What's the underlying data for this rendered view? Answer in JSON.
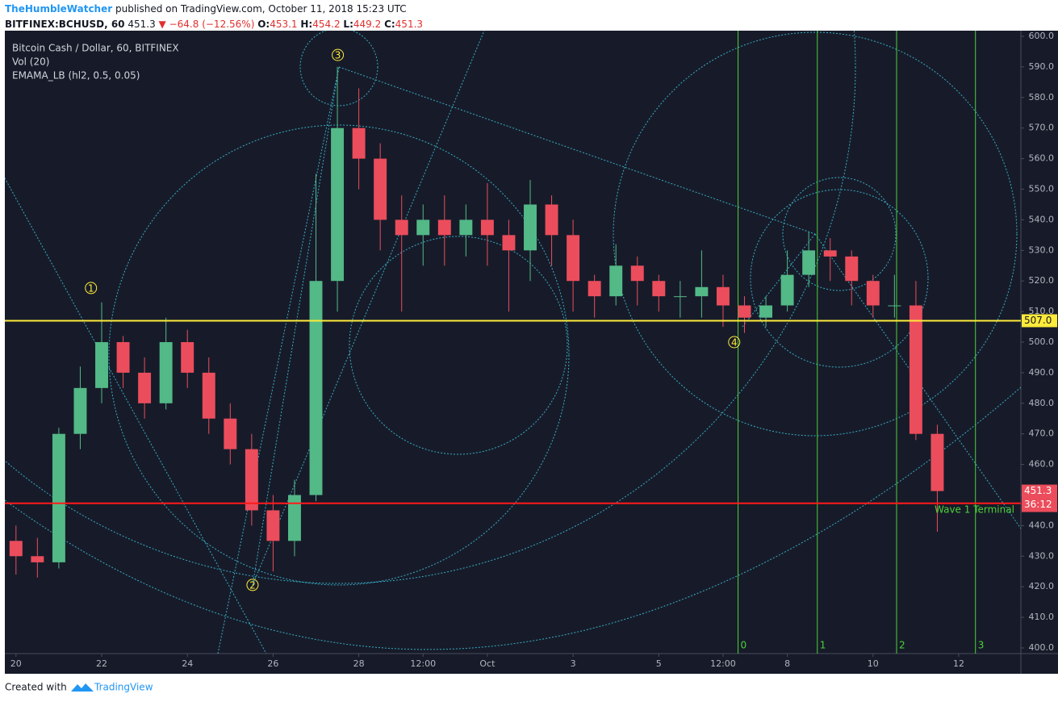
{
  "header": {
    "author": "TheHumbleWatcher",
    "published": "published on TradingView.com, October 11, 2018 15:23 UTC",
    "symbol": "BITFINEX:BCHUSD, 60",
    "last": "451.3",
    "arrow": "▼",
    "change": "−64.8 (−12.56%)",
    "ohlc": [
      {
        "label": "O:",
        "value": "453.1"
      },
      {
        "label": "H:",
        "value": "454.2"
      },
      {
        "label": "L:",
        "value": "449.2"
      },
      {
        "label": "C:",
        "value": "451.3"
      }
    ]
  },
  "chart_data": {
    "type": "candlestick",
    "title": "Bitcoin Cash / Dollar, 60, BITFINEX",
    "indicators": [
      "Vol (20)",
      "EMAMA_LB (hl2, 0.5, 0.05)"
    ],
    "up_color": "#53b987",
    "down_color": "#eb4d5c",
    "x": [
      0,
      0.5,
      1,
      1.5,
      2,
      2.5,
      3,
      3.5,
      4,
      4.5,
      5,
      5.5,
      6,
      6.5,
      7,
      7.5,
      8,
      8.5,
      9,
      9.5,
      10,
      10.5,
      11,
      11.5,
      12,
      12.5,
      13,
      13.5,
      14,
      14.5,
      15,
      15.5,
      16,
      16.5,
      17,
      17.5,
      18,
      18.5,
      19,
      19.5,
      20,
      20.5,
      21,
      21.5
    ],
    "open": [
      435,
      430,
      428,
      470,
      485,
      500,
      490,
      480,
      500,
      490,
      475,
      465,
      445,
      435,
      450,
      520,
      570,
      560,
      540,
      535,
      540,
      535,
      540,
      535,
      530,
      545,
      535,
      520,
      515,
      525,
      520,
      515,
      515,
      518,
      512,
      508,
      512,
      522,
      530,
      528,
      520,
      512,
      512,
      470
    ],
    "high": [
      440,
      436,
      472,
      492,
      513,
      502,
      495,
      508,
      504,
      495,
      480,
      470,
      450,
      455,
      555,
      590,
      583,
      565,
      548,
      545,
      548,
      545,
      552,
      540,
      553,
      548,
      540,
      522,
      532,
      528,
      522,
      520,
      530,
      522,
      515,
      515,
      530,
      536,
      534,
      530,
      522,
      522,
      520,
      473
    ],
    "low": [
      424,
      423,
      426,
      465,
      480,
      485,
      475,
      478,
      485,
      470,
      460,
      440,
      425,
      430,
      448,
      510,
      550,
      530,
      510,
      525,
      525,
      528,
      525,
      510,
      520,
      525,
      510,
      508,
      512,
      512,
      510,
      508,
      508,
      505,
      503,
      505,
      510,
      518,
      520,
      512,
      508,
      508,
      468,
      438
    ],
    "close": [
      430,
      428,
      470,
      485,
      500,
      490,
      480,
      500,
      490,
      475,
      465,
      445,
      435,
      450,
      520,
      570,
      560,
      540,
      535,
      540,
      535,
      540,
      535,
      530,
      545,
      535,
      520,
      515,
      525,
      520,
      515,
      515,
      518,
      512,
      508,
      512,
      522,
      530,
      528,
      520,
      512,
      512,
      470,
      451.3
    ],
    "xlim": [
      -0.26,
      23.45
    ],
    "ylim": [
      398.15,
      601.85
    ],
    "xticks": [
      {
        "value": 0,
        "label": "20"
      },
      {
        "value": 2,
        "label": "22"
      },
      {
        "value": 4,
        "label": "24"
      },
      {
        "value": 6,
        "label": "26"
      },
      {
        "value": 8,
        "label": "28"
      },
      {
        "value": 9.5,
        "label": "12:00"
      },
      {
        "value": 11,
        "label": "Oct"
      },
      {
        "value": 13,
        "label": "3"
      },
      {
        "value": 15,
        "label": "5"
      },
      {
        "value": 16.5,
        "label": "12:00"
      },
      {
        "value": 18,
        "label": "8"
      },
      {
        "value": 20,
        "label": "10"
      },
      {
        "value": 22,
        "label": "12"
      }
    ],
    "yticks": [
      {
        "value": 400,
        "label": "400.0"
      },
      {
        "value": 410,
        "label": "410.0"
      },
      {
        "value": 420,
        "label": "420.0"
      },
      {
        "value": 430,
        "label": "430.0"
      },
      {
        "value": 440,
        "label": "440.0"
      },
      {
        "value": 450,
        "label": "450.0"
      },
      {
        "value": 460,
        "label": "460.0"
      },
      {
        "value": 470,
        "label": "470.0"
      },
      {
        "value": 480,
        "label": "480.0"
      },
      {
        "value": 490,
        "label": "490.0"
      },
      {
        "value": 500,
        "label": "500.0"
      },
      {
        "value": 510,
        "label": "510.0"
      },
      {
        "value": 520,
        "label": "520.0"
      },
      {
        "value": 530,
        "label": "530.0"
      },
      {
        "value": 540,
        "label": "540.0"
      },
      {
        "value": 550,
        "label": "550.0"
      },
      {
        "value": 560,
        "label": "560.0"
      },
      {
        "value": 570,
        "label": "570.0"
      },
      {
        "value": 580,
        "label": "580.0"
      },
      {
        "value": 590,
        "label": "590.0"
      },
      {
        "value": 600,
        "label": "600.0"
      }
    ],
    "hlines": [
      {
        "value": 507,
        "label": "507.0",
        "color": "#ffeb3b"
      },
      {
        "value": 447.3,
        "color": "#ff1a1a"
      }
    ],
    "last_price": 451.3,
    "countdown": "36:12",
    "vlines": [
      {
        "x": 16.85,
        "label": "0"
      },
      {
        "x": 18.7,
        "label": "1"
      },
      {
        "x": 20.55,
        "label": "2"
      },
      {
        "x": 22.39,
        "label": "3"
      }
    ],
    "waves": [
      {
        "label": "1",
        "x": 1.75,
        "y": 517.7
      },
      {
        "label": "2",
        "x": 5.52,
        "y": 420.6
      },
      {
        "label": "3",
        "x": 7.51,
        "y": 593.9
      },
      {
        "label": "4",
        "x": 16.76,
        "y": 500
      }
    ],
    "annotation": "Wave 1 Terminal"
  },
  "footer": {
    "created": "Created with",
    "brand": "TradingView"
  }
}
